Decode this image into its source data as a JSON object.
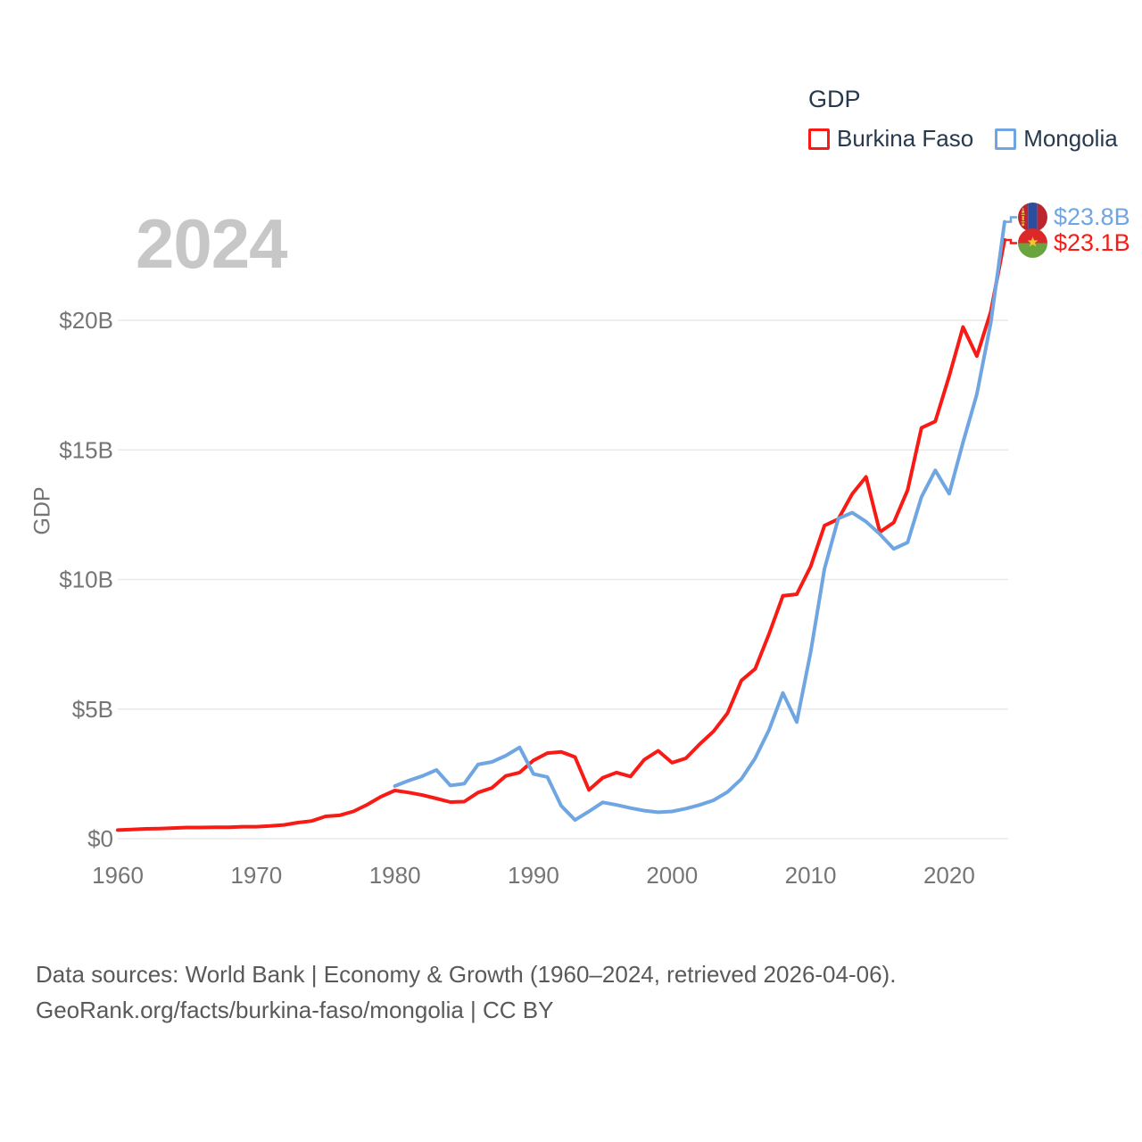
{
  "legend": {
    "title": "GDP",
    "items": [
      {
        "label": "Burkina Faso",
        "color": "#f81b15"
      },
      {
        "label": "Mongolia",
        "color": "#6fa6e2"
      }
    ]
  },
  "watermark": "2024",
  "y_axis": {
    "label": "GDP",
    "ticks": [
      {
        "label": "$0",
        "value": 0
      },
      {
        "label": "$5B",
        "value": 5
      },
      {
        "label": "$10B",
        "value": 10
      },
      {
        "label": "$15B",
        "value": 15
      },
      {
        "label": "$20B",
        "value": 20
      }
    ]
  },
  "x_axis": {
    "ticks": [
      {
        "label": "1960",
        "value": 1960
      },
      {
        "label": "1970",
        "value": 1970
      },
      {
        "label": "1980",
        "value": 1980
      },
      {
        "label": "1990",
        "value": 1990
      },
      {
        "label": "2000",
        "value": 2000
      },
      {
        "label": "2010",
        "value": 2010
      },
      {
        "label": "2020",
        "value": 2020
      }
    ]
  },
  "end_labels": [
    {
      "series": "Mongolia",
      "text": "$23.8B"
    },
    {
      "series": "Burkina Faso",
      "text": "$23.1B"
    }
  ],
  "footer": {
    "line1": "Data sources: World Bank | Economy & Growth (1960–2024, retrieved 2026-04-06).",
    "line2": "GeoRank.org/facts/burkina-faso/mongolia | CC BY"
  },
  "chart_data": {
    "type": "line",
    "title": "GDP",
    "ylabel": "GDP",
    "unit": "billions of current US$",
    "x_start": 1960,
    "x_end": 2024,
    "ylim": [
      0,
      24.3
    ],
    "grid": "horizontal",
    "legend_position": "top-right",
    "series": [
      {
        "name": "Burkina Faso",
        "color": "#f81b15",
        "first_year": 1960,
        "end_value_label": "$23.1B",
        "values": [
          0.33,
          0.35,
          0.38,
          0.39,
          0.41,
          0.43,
          0.43,
          0.44,
          0.44,
          0.46,
          0.46,
          0.49,
          0.53,
          0.62,
          0.68,
          0.86,
          0.9,
          1.05,
          1.31,
          1.62,
          1.86,
          1.78,
          1.68,
          1.55,
          1.41,
          1.43,
          1.78,
          1.96,
          2.42,
          2.55,
          3.02,
          3.3,
          3.35,
          3.15,
          1.88,
          2.35,
          2.55,
          2.4,
          3.05,
          3.39,
          2.93,
          3.1,
          3.65,
          4.14,
          4.84,
          6.1,
          6.55,
          7.9,
          9.37,
          9.43,
          10.5,
          12.08,
          12.33,
          13.3,
          13.96,
          11.83,
          12.2,
          13.45,
          15.85,
          16.1,
          17.85,
          19.74,
          18.62,
          20.33,
          23.1
        ]
      },
      {
        "name": "Mongolia",
        "color": "#6fa6e2",
        "first_year": 1980,
        "end_value_label": "$23.8B",
        "values": [
          2.03,
          2.24,
          2.42,
          2.65,
          2.05,
          2.12,
          2.86,
          2.96,
          3.2,
          3.52,
          2.5,
          2.38,
          1.27,
          0.72,
          1.05,
          1.4,
          1.3,
          1.18,
          1.08,
          1.02,
          1.05,
          1.16,
          1.3,
          1.48,
          1.8,
          2.3,
          3.1,
          4.2,
          5.62,
          4.5,
          7.19,
          10.41,
          12.35,
          12.58,
          12.23,
          11.75,
          11.18,
          11.43,
          13.18,
          14.21,
          13.31,
          15.29,
          17.15,
          19.9,
          23.8
        ]
      }
    ]
  }
}
